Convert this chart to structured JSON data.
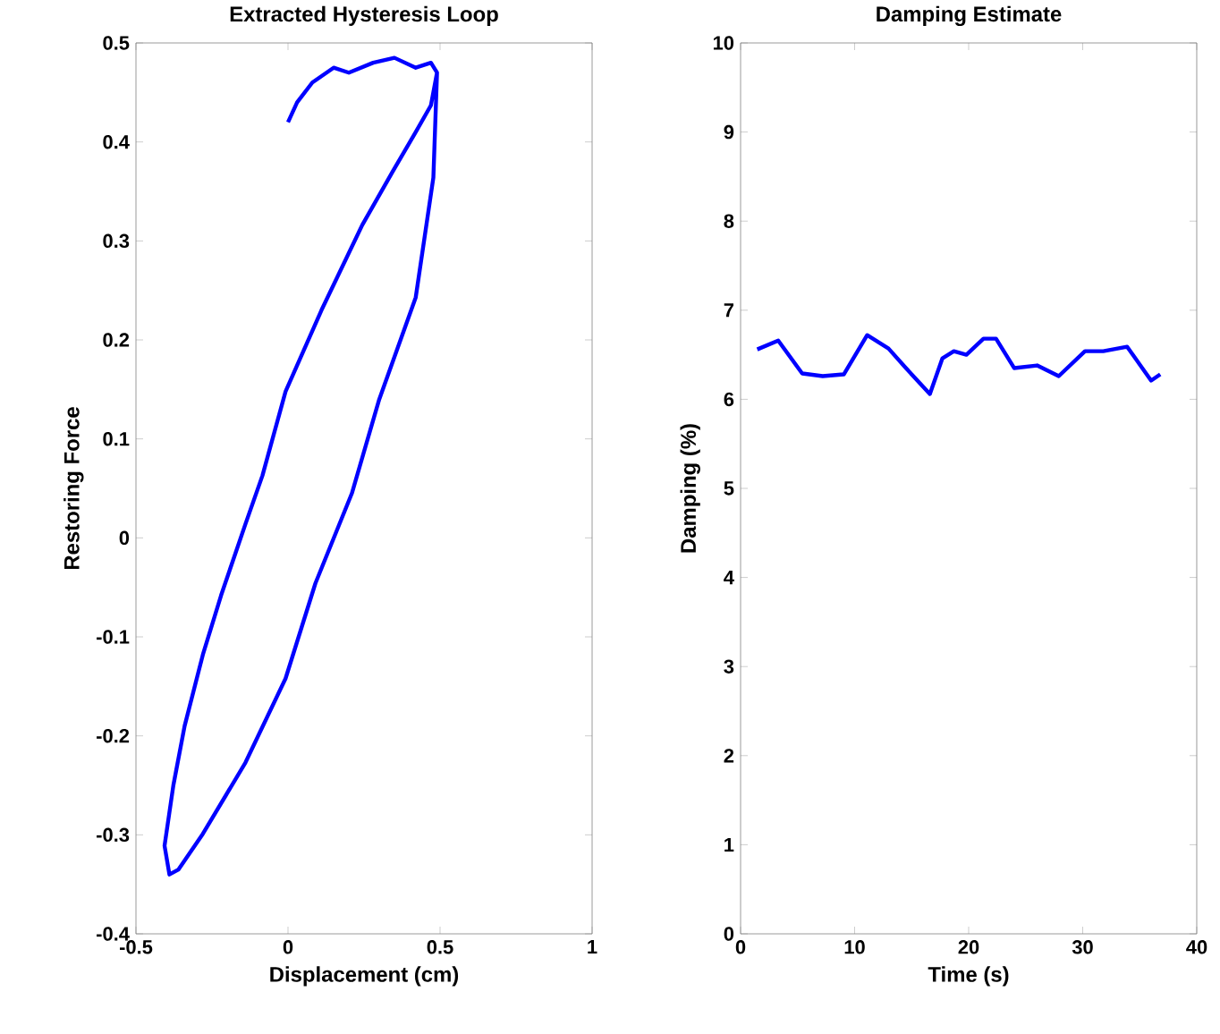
{
  "chart_data": [
    {
      "type": "line",
      "title": "Extracted Hysteresis Loop",
      "xlabel": "Displacement (cm)",
      "ylabel": "Restoring Force",
      "color": "#0000ff",
      "xlim": [
        -0.5,
        1
      ],
      "ylim": [
        -0.4,
        0.5
      ],
      "xticks": [
        -0.5,
        0,
        0.5,
        1
      ],
      "yticks": [
        -0.4,
        -0.3,
        -0.2,
        -0.1,
        0,
        0.1,
        0.2,
        0.3,
        0.4,
        0.5
      ],
      "x": [
        0,
        0.03,
        0.08,
        0.15,
        0.2,
        0.28,
        0.35,
        0.42,
        0.47,
        0.49,
        0.478,
        0.42,
        0.3,
        0.21,
        0.09,
        -0.008,
        -0.14,
        -0.28,
        -0.36,
        -0.39,
        -0.406,
        -0.377,
        -0.34,
        -0.28,
        -0.22,
        -0.14,
        -0.084,
        -0.008,
        0.11,
        0.244,
        0.344,
        0.42,
        0.47,
        0.49
      ],
      "values": [
        0.42,
        0.44,
        0.46,
        0.475,
        0.47,
        0.48,
        0.485,
        0.475,
        0.48,
        0.47,
        0.364,
        0.243,
        0.14,
        0.045,
        -0.046,
        -0.142,
        -0.227,
        -0.299,
        -0.335,
        -0.34,
        -0.311,
        -0.25,
        -0.19,
        -0.118,
        -0.058,
        0.014,
        0.063,
        0.148,
        0.23,
        0.316,
        0.37,
        0.41,
        0.437,
        0.47
      ]
    },
    {
      "type": "line",
      "title": "Damping Estimate",
      "xlabel": "Time (s)",
      "ylabel": "Damping (%)",
      "color": "#0000ff",
      "xlim": [
        0,
        40
      ],
      "ylim": [
        0,
        10
      ],
      "xticks": [
        0,
        10,
        20,
        30,
        40
      ],
      "yticks": [
        0,
        1,
        2,
        3,
        4,
        5,
        6,
        7,
        8,
        9,
        10
      ],
      "x": [
        1.46,
        3.3,
        5.4,
        7.2,
        9.05,
        11.1,
        12.97,
        14.5,
        16.6,
        17.7,
        18.7,
        19.8,
        21.3,
        22.4,
        24,
        26,
        27.9,
        30.2,
        31.8,
        33.9,
        36,
        36.8
      ],
      "values": [
        6.56,
        6.66,
        6.29,
        6.26,
        6.28,
        6.72,
        6.57,
        6.35,
        6.06,
        6.46,
        6.54,
        6.5,
        6.68,
        6.68,
        6.35,
        6.38,
        6.26,
        6.54,
        6.54,
        6.59,
        6.21,
        6.28
      ]
    }
  ]
}
